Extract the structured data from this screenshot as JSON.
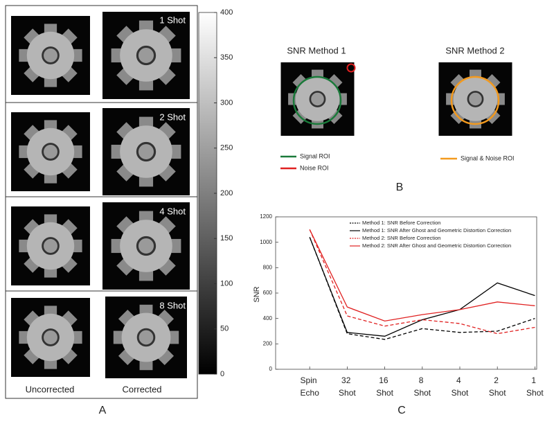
{
  "panel_a": {
    "label": "A",
    "rows": [
      "1 Shot",
      "2 Shot",
      "4 Shot",
      "8 Shot"
    ],
    "columns": [
      "Uncorrected",
      "Corrected"
    ],
    "colorbar": {
      "lim": [
        0,
        400
      ],
      "ticks": [
        0,
        50,
        100,
        150,
        200,
        250,
        300,
        350,
        400
      ]
    }
  },
  "panel_b": {
    "label": "B",
    "method1": {
      "title": "SNR Method 1",
      "legend": [
        {
          "name": "Signal ROI",
          "color": "#1a7a3a"
        },
        {
          "name": "Noise ROI",
          "color": "#e02020"
        }
      ]
    },
    "method2": {
      "title": "SNR Method 2",
      "legend": [
        {
          "name": "Signal & Noise ROI",
          "color": "#f39a1e"
        }
      ]
    }
  },
  "panel_c": {
    "label": "C"
  },
  "chart_data": {
    "type": "line",
    "y_label": "SNR",
    "categories": [
      null,
      "Spin Echo",
      "32 Shot",
      "16 Shot",
      "8 Shot",
      "4 Shot",
      "2 Shot",
      "1 Shot"
    ],
    "ylim": [
      0,
      1200
    ],
    "yticks": [
      0,
      200,
      400,
      600,
      800,
      1000,
      1200
    ],
    "series": [
      {
        "name": "Method 1: SNR Before Correction",
        "color": "#000000",
        "line_style": "dashed",
        "values": [
          null,
          1040,
          280,
          235,
          320,
          290,
          300,
          400
        ]
      },
      {
        "name": "Method 1: SNR After Ghost and Geometric Distortion Correction",
        "color": "#000000",
        "line_style": "solid",
        "values": [
          null,
          1040,
          290,
          260,
          390,
          470,
          680,
          580
        ]
      },
      {
        "name": "Method 2: SNR Before Correction",
        "color": "#e02020",
        "line_style": "dashed",
        "values": [
          null,
          1100,
          420,
          340,
          390,
          360,
          280,
          330
        ]
      },
      {
        "name": "Method 2: SNR After Ghost and Geometric Distortion Correction",
        "color": "#e02020",
        "line_style": "solid",
        "values": [
          null,
          1100,
          490,
          380,
          430,
          470,
          530,
          500
        ]
      }
    ]
  }
}
